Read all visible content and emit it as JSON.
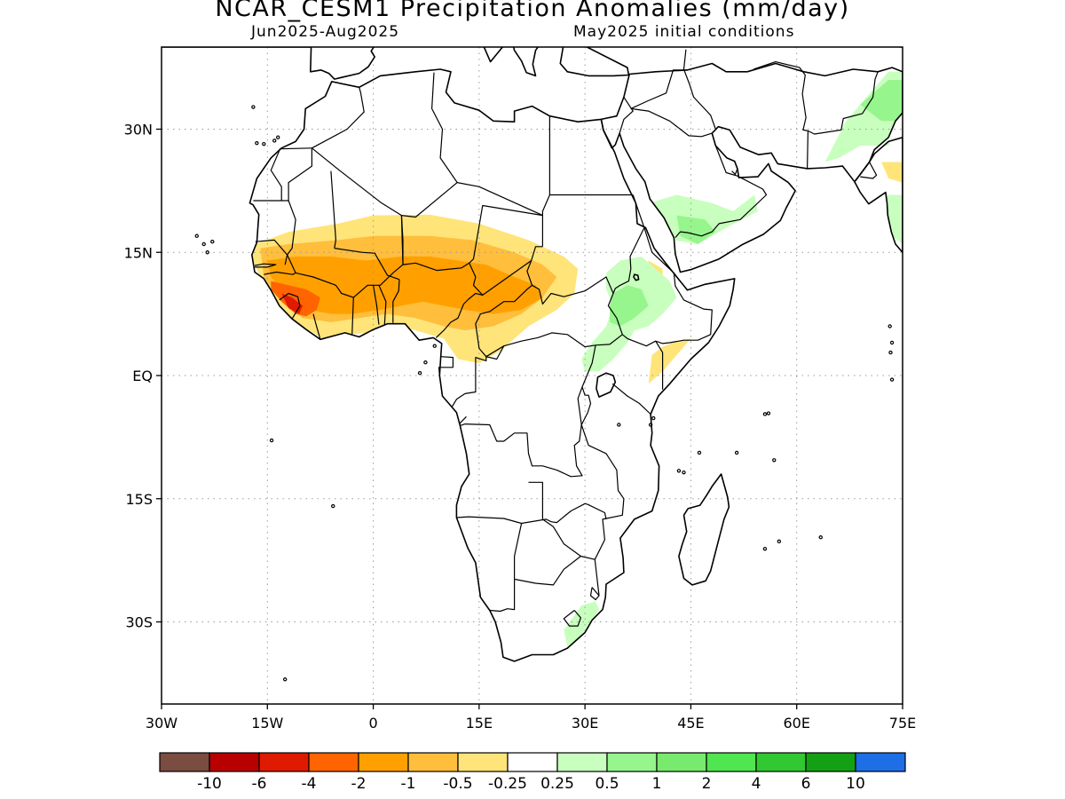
{
  "title": "NCAR_CESM1 Precipitation Anomalies (mm/day)",
  "subtitle_left": "Jun2025-Aug2025",
  "subtitle_right": "May2025 initial conditions",
  "map": {
    "lon_range": [
      -30,
      75
    ],
    "lat_range": [
      -40,
      40
    ],
    "x_ticks": [
      {
        "lon": -30,
        "label": "30W"
      },
      {
        "lon": -15,
        "label": "15W"
      },
      {
        "lon": 0,
        "label": "0"
      },
      {
        "lon": 15,
        "label": "15E"
      },
      {
        "lon": 30,
        "label": "30E"
      },
      {
        "lon": 45,
        "label": "45E"
      },
      {
        "lon": 60,
        "label": "60E"
      },
      {
        "lon": 75,
        "label": "75E"
      }
    ],
    "y_ticks": [
      {
        "lat": 30,
        "label": "30N"
      },
      {
        "lat": 15,
        "label": "15N"
      },
      {
        "lat": 0,
        "label": "EQ"
      },
      {
        "lat": -15,
        "label": "15S"
      },
      {
        "lat": -30,
        "label": "30S"
      }
    ],
    "grid": true
  },
  "colorbar": {
    "colors": [
      "#7b4c40",
      "#b80000",
      "#e01a00",
      "#ff6400",
      "#ffa000",
      "#ffbe3c",
      "#ffe47a",
      "#ffffff",
      "#c8ffbe",
      "#96f58c",
      "#78eb6e",
      "#50e650",
      "#32c832",
      "#14a014",
      "#1e6ee6"
    ],
    "labels": [
      "-10",
      "-6",
      "-4",
      "-2",
      "-1",
      "-0.5",
      "-0.25",
      "0.25",
      "0.5",
      "1",
      "2",
      "4",
      "6",
      "10"
    ]
  },
  "anomaly_regions": [
    {
      "value": -0.25,
      "color": "#ffe47a",
      "points": [
        [
          -16.7,
          16
        ],
        [
          -12,
          17.5
        ],
        [
          -5,
          18.5
        ],
        [
          0,
          19.5
        ],
        [
          8,
          19.6
        ],
        [
          15,
          18.5
        ],
        [
          22,
          16.5
        ],
        [
          27,
          14.5
        ],
        [
          29,
          13
        ],
        [
          28.5,
          10
        ],
        [
          26,
          8
        ],
        [
          22,
          6
        ],
        [
          18,
          3
        ],
        [
          15,
          1.5
        ],
        [
          12,
          2
        ],
        [
          10,
          4.5
        ],
        [
          8,
          5
        ],
        [
          4,
          6
        ],
        [
          0,
          5.2
        ],
        [
          -4,
          5
        ],
        [
          -7,
          4.4
        ],
        [
          -10,
          6
        ],
        [
          -13,
          8
        ],
        [
          -15.5,
          11
        ],
        [
          -17.3,
          14.5
        ]
      ]
    },
    {
      "value": -1,
      "color": "#ffbe3c",
      "points": [
        [
          -16,
          15.5
        ],
        [
          -12,
          16
        ],
        [
          -5,
          16.5
        ],
        [
          0,
          17
        ],
        [
          8,
          17
        ],
        [
          14,
          16.5
        ],
        [
          20,
          15
        ],
        [
          24,
          13.5
        ],
        [
          26,
          12
        ],
        [
          24,
          9.5
        ],
        [
          21,
          7.5
        ],
        [
          17,
          6
        ],
        [
          13,
          5.5
        ],
        [
          10,
          6
        ],
        [
          6,
          7
        ],
        [
          2,
          7.5
        ],
        [
          -2,
          7
        ],
        [
          -6,
          6.5
        ],
        [
          -10,
          7
        ],
        [
          -13,
          9
        ],
        [
          -15.5,
          12
        ]
      ]
    },
    {
      "value": -2,
      "color": "#ffa000",
      "points": [
        [
          -15,
          14
        ],
        [
          -11,
          14.5
        ],
        [
          -6,
          14.5
        ],
        [
          -1,
          14
        ],
        [
          4,
          14.5
        ],
        [
          8,
          14.5
        ],
        [
          12,
          14
        ],
        [
          16,
          13.5
        ],
        [
          20,
          12
        ],
        [
          23,
          11
        ],
        [
          24,
          9.5
        ],
        [
          21,
          8
        ],
        [
          17,
          7.5
        ],
        [
          13,
          8
        ],
        [
          10,
          8.5
        ],
        [
          7,
          9
        ],
        [
          4,
          8.5
        ],
        [
          1,
          8
        ],
        [
          -3,
          7.5
        ],
        [
          -6,
          7.5
        ],
        [
          -9,
          8
        ],
        [
          -12,
          9.5
        ],
        [
          -14.5,
          12
        ]
      ]
    },
    {
      "value": -4,
      "color": "#ff6400",
      "points": [
        [
          -14.5,
          11.5
        ],
        [
          -12,
          11
        ],
        [
          -9.5,
          10.5
        ],
        [
          -7.5,
          9.5
        ],
        [
          -8,
          8
        ],
        [
          -9.5,
          7.2
        ],
        [
          -11,
          7.5
        ],
        [
          -13,
          9
        ],
        [
          -14.5,
          10.5
        ]
      ]
    },
    {
      "value": -6,
      "color": "#e01a00",
      "points": [
        [
          -13,
          10
        ],
        [
          -11.5,
          9.5
        ],
        [
          -10,
          8.5
        ],
        [
          -10.5,
          7.5
        ],
        [
          -12,
          8.2
        ]
      ]
    },
    {
      "value": -0.25,
      "color": "#ffe47a",
      "points": [
        [
          39,
          14
        ],
        [
          41,
          13
        ],
        [
          41,
          11.5
        ],
        [
          39.5,
          11
        ],
        [
          38.5,
          12.5
        ]
      ]
    },
    {
      "value": -0.25,
      "color": "#ffe47a",
      "points": [
        [
          39.5,
          2.5
        ],
        [
          41,
          3.5
        ],
        [
          43,
          4.2
        ],
        [
          45,
          4.5
        ],
        [
          43,
          2.5
        ],
        [
          41,
          0.5
        ],
        [
          39,
          -1
        ]
      ]
    },
    {
      "value": -0.25,
      "color": "#ffe47a",
      "points": [
        [
          72,
          26
        ],
        [
          75,
          26
        ],
        [
          75,
          23.5
        ],
        [
          73,
          24
        ]
      ]
    },
    {
      "value": 0.5,
      "color": "#c8ffbe",
      "points": [
        [
          33,
          12.5
        ],
        [
          35,
          14
        ],
        [
          38,
          14.5
        ],
        [
          40,
          13
        ],
        [
          42,
          11.5
        ],
        [
          43,
          9.5
        ],
        [
          41,
          7.5
        ],
        [
          39,
          6
        ],
        [
          37,
          5.5
        ],
        [
          36,
          4
        ],
        [
          34,
          2
        ],
        [
          32,
          0.5
        ],
        [
          30,
          0.5
        ],
        [
          29.5,
          2
        ],
        [
          31,
          4
        ],
        [
          33,
          6
        ],
        [
          34,
          8.5
        ],
        [
          33,
          10.5
        ]
      ]
    },
    {
      "value": 1,
      "color": "#96f58c",
      "points": [
        [
          34,
          10
        ],
        [
          36,
          11
        ],
        [
          38,
          10.5
        ],
        [
          39,
          8.5
        ],
        [
          37,
          7
        ],
        [
          35,
          6
        ],
        [
          33.5,
          6.5
        ],
        [
          33.5,
          8.5
        ]
      ]
    },
    {
      "value": 0.5,
      "color": "#c8ffbe",
      "points": [
        [
          39,
          21
        ],
        [
          43,
          22
        ],
        [
          48,
          21
        ],
        [
          51,
          20
        ],
        [
          54,
          22
        ],
        [
          54.5,
          20
        ],
        [
          50,
          18
        ],
        [
          46,
          16
        ],
        [
          42.5,
          16.5
        ],
        [
          40,
          19
        ]
      ]
    },
    {
      "value": 1,
      "color": "#96f58c",
      "points": [
        [
          43,
          19.5
        ],
        [
          47,
          19
        ],
        [
          48.5,
          17.5
        ],
        [
          46,
          16
        ],
        [
          43.5,
          17
        ]
      ]
    },
    {
      "value": 0.5,
      "color": "#c8ffbe",
      "points": [
        [
          64,
          26
        ],
        [
          67,
          31
        ],
        [
          70,
          34
        ],
        [
          73,
          37
        ],
        [
          75,
          37
        ],
        [
          75,
          31
        ],
        [
          73,
          28
        ],
        [
          69,
          28
        ],
        [
          66,
          26.5
        ]
      ]
    },
    {
      "value": 1,
      "color": "#96f58c",
      "points": [
        [
          69,
          33
        ],
        [
          73,
          36
        ],
        [
          75,
          36
        ],
        [
          75,
          31
        ],
        [
          72,
          31
        ]
      ]
    },
    {
      "value": 0.5,
      "color": "#c8ffbe",
      "points": [
        [
          72,
          22
        ],
        [
          75,
          22
        ],
        [
          75,
          16
        ],
        [
          73.5,
          17
        ]
      ]
    },
    {
      "value": 0.5,
      "color": "#c8ffbe",
      "points": [
        [
          27,
          -31
        ],
        [
          29.5,
          -28
        ],
        [
          31.5,
          -27.5
        ],
        [
          32,
          -28.5
        ],
        [
          30.5,
          -30.5
        ],
        [
          29,
          -32
        ],
        [
          27.5,
          -33
        ]
      ]
    }
  ]
}
